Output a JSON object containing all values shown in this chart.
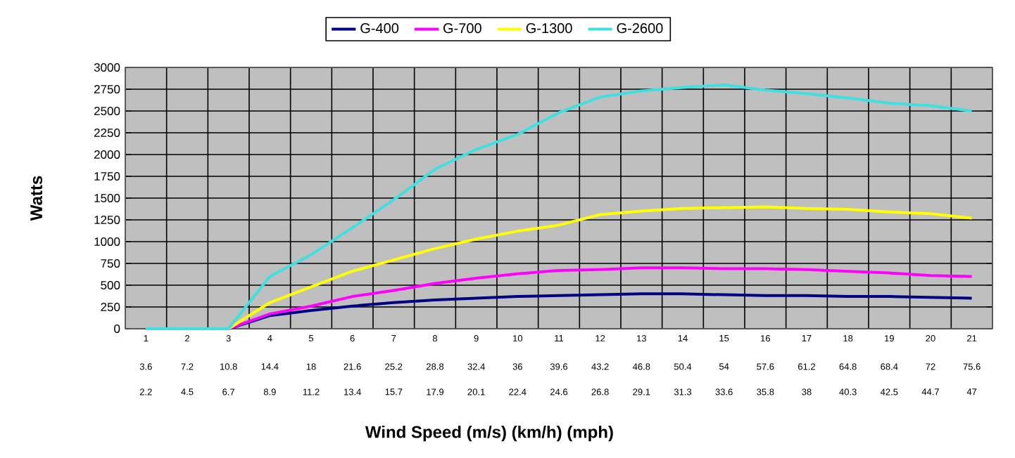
{
  "chart_data": {
    "type": "line",
    "xlabel": "Wind Speed (m/s) (km/h) (mph)",
    "ylabel": "Watts",
    "x": [
      1,
      2,
      3,
      4,
      5,
      6,
      7,
      8,
      9,
      10,
      11,
      12,
      13,
      14,
      15,
      16,
      17,
      18,
      19,
      20,
      21
    ],
    "xlim": [
      0.5,
      21.5
    ],
    "xticks": [
      1,
      2,
      3,
      4,
      5,
      6,
      7,
      8,
      9,
      10,
      11,
      12,
      13,
      14,
      15,
      16,
      17,
      18,
      19,
      20,
      21
    ],
    "x2lim": [
      1.8,
      77.4
    ],
    "x2ticks": [
      3.6,
      7.2,
      10.8,
      14.4,
      18,
      21.6,
      25.2,
      28.8,
      32.4,
      36,
      39.6,
      43.2,
      46.8,
      50.4,
      54,
      57.6,
      61.2,
      64.8,
      68.4,
      72,
      75.6
    ],
    "annotations": [
      "2.2",
      "4.5",
      "6.7",
      "8.9",
      "11.2",
      "13.4",
      "15.7",
      "17.9",
      "20.1",
      "22.4",
      "24.6",
      "26.8",
      "29.1",
      "31.3",
      "33.6",
      "35.8",
      "38",
      "40.3",
      "42.5",
      "44.7",
      "47"
    ],
    "ylim": [
      0,
      3000
    ],
    "yticks": [
      0,
      250,
      500,
      750,
      1000,
      1250,
      1500,
      1750,
      2000,
      2250,
      2500,
      2750,
      3000
    ],
    "grid": true,
    "legend": "top",
    "marker": "none",
    "line_style": "solid",
    "series": [
      {
        "name": "G-400",
        "color": "#000080",
        "values": [
          0,
          0,
          0,
          150,
          210,
          260,
          300,
          330,
          350,
          370,
          380,
          390,
          400,
          400,
          390,
          380,
          380,
          370,
          370,
          360,
          350
        ]
      },
      {
        "name": "G-700",
        "color": "#ff00ff",
        "values": [
          0,
          0,
          0,
          170,
          260,
          370,
          440,
          520,
          580,
          630,
          670,
          680,
          700,
          700,
          690,
          690,
          680,
          660,
          640,
          610,
          600
        ]
      },
      {
        "name": "G-1300",
        "color": "#ffff00",
        "values": [
          0,
          0,
          0,
          300,
          480,
          660,
          790,
          920,
          1030,
          1120,
          1190,
          1310,
          1350,
          1380,
          1390,
          1400,
          1380,
          1370,
          1340,
          1320,
          1270
        ]
      },
      {
        "name": "G-2600",
        "color": "#40e0e0",
        "values": [
          0,
          0,
          0,
          600,
          850,
          1160,
          1480,
          1830,
          2060,
          2230,
          2480,
          2660,
          2730,
          2770,
          2800,
          2740,
          2700,
          2650,
          2590,
          2560,
          2500
        ]
      }
    ]
  }
}
